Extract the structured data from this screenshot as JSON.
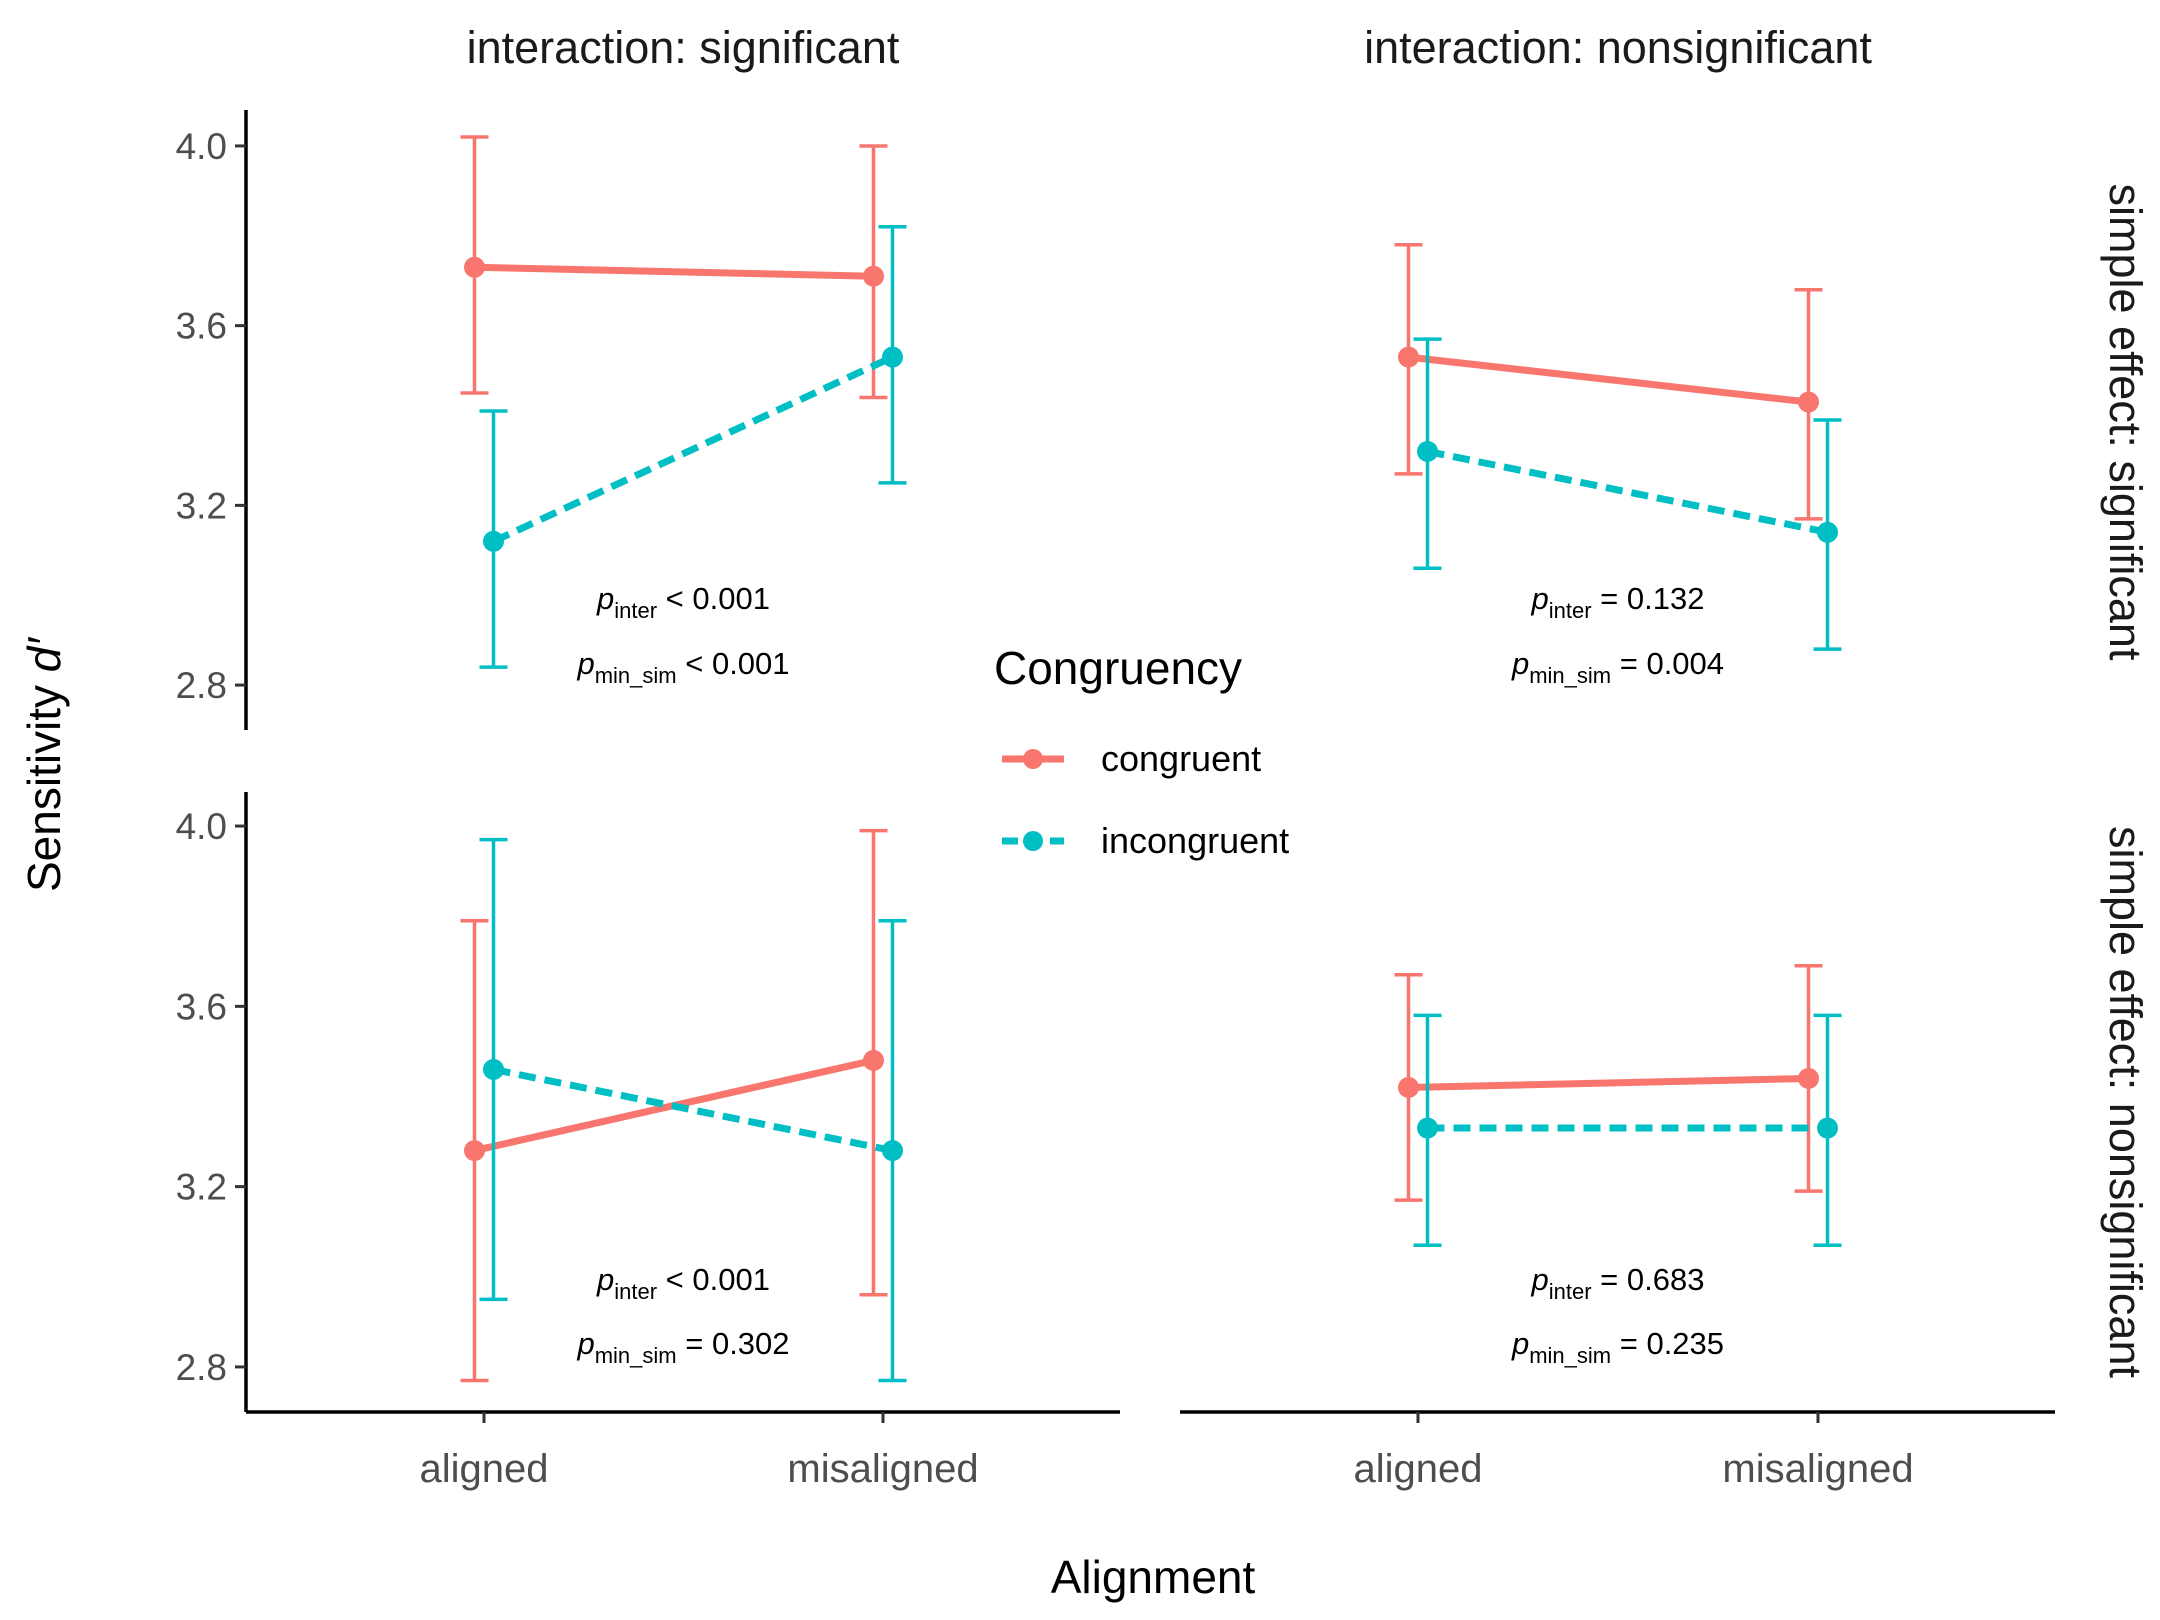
{
  "chart_data": {
    "type": "line",
    "ylabel_prefix": "Sensitivity ",
    "ylabel_italic": "d′",
    "xlabel": "Alignment",
    "categories": [
      "aligned",
      "misaligned"
    ],
    "ylim": [
      2.7,
      4.08
    ],
    "yticks": [
      "2.8",
      "3.2",
      "3.6",
      "4.0"
    ],
    "legend": {
      "title": "Congruency",
      "position": "center",
      "entries": [
        {
          "name": "congruent",
          "color": "#F8766D",
          "dash": "solid"
        },
        {
          "name": "incongruent",
          "color": "#00BFC4",
          "dash": "dashed"
        }
      ]
    },
    "col_labels": [
      "interaction: significant",
      "interaction: nonsignificant"
    ],
    "row_labels": [
      "simple effect: significant",
      "simple effect: nonsignificant"
    ],
    "panels": [
      {
        "row": 0,
        "col": 0,
        "series": [
          {
            "name": "congruent",
            "values": [
              3.73,
              3.71
            ],
            "ci_low": [
              3.45,
              3.44
            ],
            "ci_high": [
              4.02,
              4.0
            ]
          },
          {
            "name": "incongruent",
            "values": [
              3.12,
              3.53
            ],
            "ci_low": [
              2.84,
              3.25
            ],
            "ci_high": [
              3.41,
              3.82
            ]
          }
        ],
        "p_inter": "< 0.001",
        "p_min_sim": "< 0.001"
      },
      {
        "row": 0,
        "col": 1,
        "series": [
          {
            "name": "congruent",
            "values": [
              3.53,
              3.43
            ],
            "ci_low": [
              3.27,
              3.17
            ],
            "ci_high": [
              3.78,
              3.68
            ]
          },
          {
            "name": "incongruent",
            "values": [
              3.32,
              3.14
            ],
            "ci_low": [
              3.06,
              2.88
            ],
            "ci_high": [
              3.57,
              3.39
            ]
          }
        ],
        "p_inter": "= 0.132",
        "p_min_sim": "= 0.004"
      },
      {
        "row": 1,
        "col": 0,
        "series": [
          {
            "name": "congruent",
            "values": [
              3.28,
              3.48
            ],
            "ci_low": [
              2.77,
              2.96
            ],
            "ci_high": [
              3.79,
              3.99
            ]
          },
          {
            "name": "incongruent",
            "values": [
              3.46,
              3.28
            ],
            "ci_low": [
              2.95,
              2.77
            ],
            "ci_high": [
              3.97,
              3.79
            ]
          }
        ],
        "p_inter": "< 0.001",
        "p_min_sim": "= 0.302"
      },
      {
        "row": 1,
        "col": 1,
        "series": [
          {
            "name": "congruent",
            "values": [
              3.42,
              3.44
            ],
            "ci_low": [
              3.17,
              3.19
            ],
            "ci_high": [
              3.67,
              3.69
            ]
          },
          {
            "name": "incongruent",
            "values": [
              3.33,
              3.33
            ],
            "ci_low": [
              3.07,
              3.07
            ],
            "ci_high": [
              3.58,
              3.58
            ]
          }
        ],
        "p_inter": "= 0.683",
        "p_min_sim": "= 0.235"
      }
    ],
    "annotation_symbol": "p",
    "annotation_sub_inter": "inter",
    "annotation_sub_min_sim": "min_sim"
  }
}
